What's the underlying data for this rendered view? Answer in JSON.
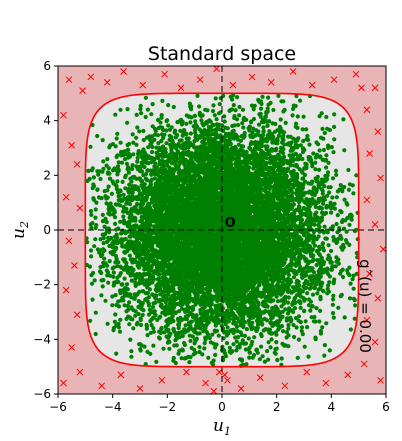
{
  "chart_data": {
    "type": "scatter",
    "title": "Standard space",
    "xlabel": "u",
    "xlabel_sub": "1",
    "ylabel": "u",
    "ylabel_sub": "2",
    "xlim": [
      -6,
      6
    ],
    "ylim": [
      -6,
      6
    ],
    "xticks": [
      -6,
      -4,
      -2,
      0,
      2,
      4,
      6
    ],
    "yticks": [
      -6,
      -4,
      -2,
      0,
      2,
      4,
      6
    ],
    "xtick_labels": [
      "−6",
      "−4",
      "−2",
      "0",
      "2",
      "4",
      "6"
    ],
    "ytick_labels": [
      "−6",
      "−4",
      "−2",
      "0",
      "2",
      "4",
      "6"
    ],
    "grid": false,
    "limit_state": {
      "label": "g˜(u) = 0.00",
      "shape": "superellipse",
      "half_width": 5.0,
      "exponent": 6,
      "color": "#ff0000"
    },
    "origin_label": "O",
    "origin_position": [
      0.3,
      0.3
    ],
    "crosshair_lines": {
      "x": 0,
      "y": 0,
      "style": "dashed"
    },
    "regions": {
      "safe_color": "#e6e6e6",
      "failure_color": "#e8b4b6"
    },
    "series": [
      {
        "marker": "dot",
        "color": "#008000",
        "count_approx": 10000,
        "distribution": "standard normal",
        "region": "safe"
      },
      {
        "marker": "x",
        "color": "#ff0000",
        "region": "failure",
        "points": [
          [
            -5.8,
            4.2
          ],
          [
            -5.5,
            3.1
          ],
          [
            -5.3,
            2.4
          ],
          [
            -5.7,
            1.2
          ],
          [
            -5.2,
            0.8
          ],
          [
            -5.6,
            -0.4
          ],
          [
            -5.4,
            -1.3
          ],
          [
            -5.7,
            -2.2
          ],
          [
            -5.3,
            -3.1
          ],
          [
            -5.5,
            -4.3
          ],
          [
            -5.2,
            -5.2
          ],
          [
            -5.8,
            -5.6
          ],
          [
            -4.8,
            5.6
          ],
          [
            -4.2,
            5.4
          ],
          [
            -3.6,
            5.8
          ],
          [
            -2.9,
            5.3
          ],
          [
            -2.1,
            5.7
          ],
          [
            -1.5,
            5.2
          ],
          [
            -0.8,
            5.5
          ],
          [
            -0.2,
            5.9
          ],
          [
            0.4,
            5.3
          ],
          [
            1.1,
            5.6
          ],
          [
            1.8,
            5.4
          ],
          [
            2.6,
            5.8
          ],
          [
            3.3,
            5.3
          ],
          [
            4.1,
            5.5
          ],
          [
            4.9,
            5.7
          ],
          [
            5.6,
            5.2
          ],
          [
            5.3,
            4.4
          ],
          [
            5.7,
            3.6
          ],
          [
            5.4,
            2.8
          ],
          [
            5.8,
            1.9
          ],
          [
            5.3,
            1.1
          ],
          [
            5.6,
            0.2
          ],
          [
            5.9,
            -0.7
          ],
          [
            5.4,
            -1.6
          ],
          [
            5.7,
            -2.5
          ],
          [
            5.3,
            -3.3
          ],
          [
            5.6,
            -4.1
          ],
          [
            5.2,
            -4.9
          ],
          [
            5.8,
            -5.5
          ],
          [
            4.6,
            -5.3
          ],
          [
            3.8,
            -5.6
          ],
          [
            3.1,
            -5.2
          ],
          [
            2.3,
            -5.7
          ],
          [
            1.4,
            -5.4
          ],
          [
            0.7,
            -5.8
          ],
          [
            0.1,
            -5.3
          ],
          [
            -0.6,
            -5.6
          ],
          [
            -1.3,
            -5.2
          ],
          [
            -2.2,
            -5.5
          ],
          [
            -3.0,
            -5.8
          ],
          [
            -3.7,
            -5.3
          ],
          [
            -4.4,
            -5.7
          ],
          [
            -5.1,
            5.1
          ],
          [
            -5.6,
            5.5
          ],
          [
            5.1,
            5.2
          ],
          [
            -0.3,
            -5.9
          ],
          [
            0.2,
            -5.5
          ],
          [
            -0.1,
            -5.2
          ]
        ]
      }
    ]
  }
}
